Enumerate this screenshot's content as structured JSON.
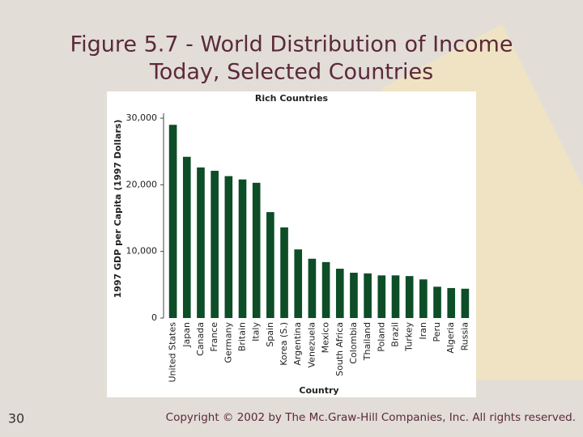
{
  "slide": {
    "title_lines": [
      "Figure 5.7 - World Distribution of Income",
      "Today, Selected Countries"
    ],
    "page_number": "30",
    "footer": "Copyright © 2002 by The Mc.Graw-Hill Companies, Inc.  All rights reserved."
  },
  "chart_data": {
    "type": "bar",
    "title": "Rich Countries",
    "x_label": "Country",
    "y_label": "1997 GDP per Capita (1997 Dollars)",
    "categories": [
      "United States",
      "Japan",
      "Canada",
      "France",
      "Germany",
      "Britain",
      "Italy",
      "Spain",
      "Korea (S.)",
      "Argentina",
      "Venezuela",
      "Mexico",
      "South Africa",
      "Colombia",
      "Thailand",
      "Poland",
      "Brazil",
      "Turkey",
      "Iran",
      "Peru",
      "Algeria",
      "Russia"
    ],
    "values": [
      29000,
      24200,
      22600,
      22100,
      21300,
      20800,
      20300,
      15900,
      13600,
      10300,
      8900,
      8400,
      7400,
      6800,
      6700,
      6400,
      6400,
      6300,
      5800,
      4700,
      4500,
      4400
    ],
    "color": "#0d4d27",
    "ylim": [
      0,
      30000
    ],
    "yticks": [
      0,
      {
        "value": 10000,
        "label": "10,000"
      },
      {
        "value": 20000,
        "label": "20,000"
      },
      {
        "value": 30000,
        "label": "30,000"
      }
    ]
  }
}
